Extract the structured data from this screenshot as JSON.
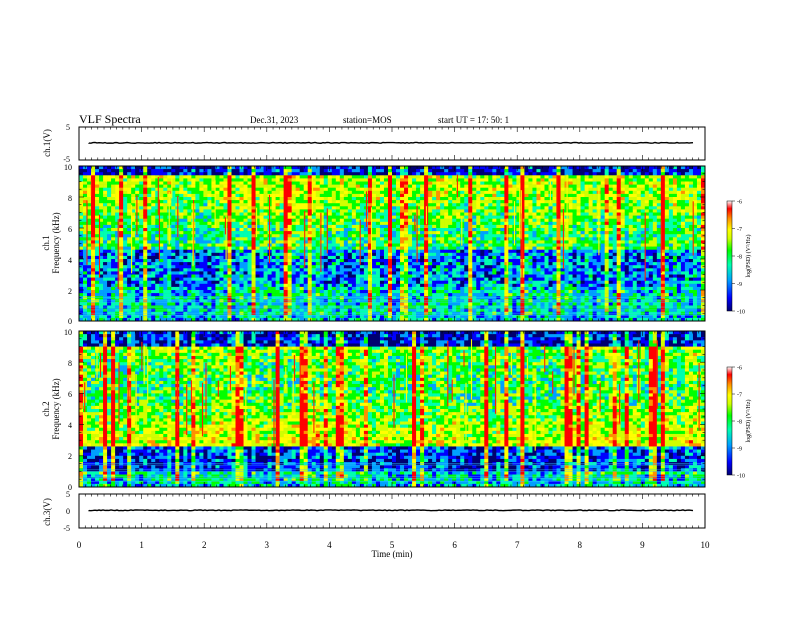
{
  "header": {
    "title": "VLF Spectra",
    "date": "Dec.31, 2023",
    "station": "station=MOS",
    "start": "start  UT  =   17: 50: 1"
  },
  "colors": {
    "scale": [
      "#000070",
      "#0000ff",
      "#00a0ff",
      "#00ffb0",
      "#00ff00",
      "#d0ff00",
      "#ffff00",
      "#ff9000",
      "#ff0000",
      "#ffffff"
    ]
  },
  "chart_data": [
    {
      "type": "line",
      "panel": "ch1-waveform",
      "ylabel": "ch.1(V)",
      "ylim": [
        -5,
        5
      ],
      "yticks": [
        "5",
        "-5"
      ],
      "x": [
        0,
        10
      ],
      "y": [
        0,
        0
      ]
    },
    {
      "type": "heatmap",
      "panel": "ch1-spectrogram",
      "ylabel": "ch.1\nFrequency (kHz)",
      "ylim": [
        0,
        10
      ],
      "yticks": [
        "0",
        "2",
        "4",
        "6",
        "8",
        "10"
      ],
      "xlim": [
        0,
        10
      ],
      "colorbar": {
        "label": "log(PSD) (V²/Hz)",
        "ticks": [
          "-6",
          "-7",
          "-8",
          "-9",
          "-10"
        ],
        "range": [
          -10,
          -6
        ]
      }
    },
    {
      "type": "heatmap",
      "panel": "ch2-spectrogram",
      "ylabel": "ch.2\nFrequency (kHz)",
      "ylim": [
        0,
        10
      ],
      "yticks": [
        "0",
        "2",
        "4",
        "6",
        "8",
        "10"
      ],
      "xlim": [
        0,
        10
      ],
      "colorbar": {
        "label": "log(PSD) (V²/Hz)",
        "ticks": [
          "-6",
          "-7",
          "-8",
          "-9",
          "-10"
        ],
        "range": [
          -10,
          -6
        ]
      }
    },
    {
      "type": "line",
      "panel": "ch3-waveform",
      "ylabel": "ch.3(V)",
      "ylim": [
        -5,
        5
      ],
      "yticks": [
        "5",
        "0",
        "-5"
      ],
      "x": [
        0,
        10
      ],
      "y": [
        0,
        0
      ]
    }
  ],
  "xaxis": {
    "label": "Time  (min)",
    "ticks": [
      "0",
      "1",
      "2",
      "3",
      "4",
      "5",
      "6",
      "7",
      "8",
      "9",
      "10"
    ]
  }
}
